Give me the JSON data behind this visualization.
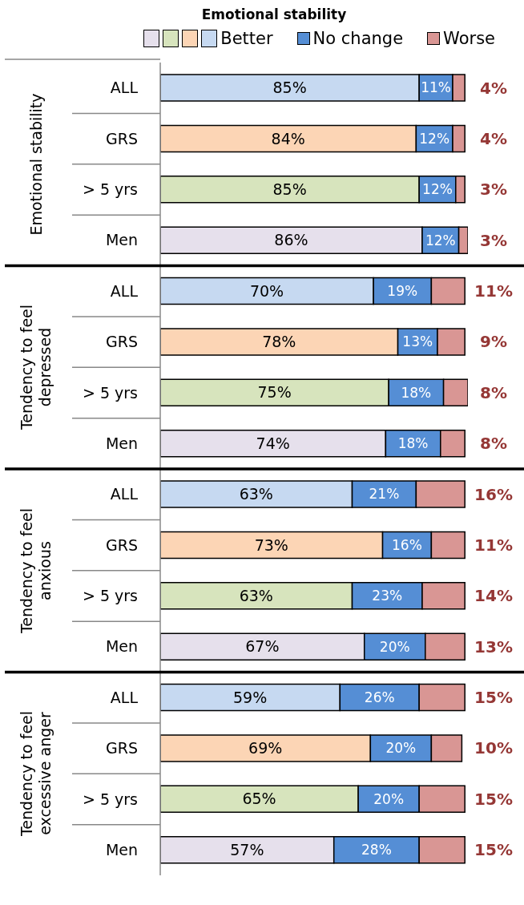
{
  "chart_data": {
    "type": "bar",
    "orientation": "horizontal",
    "stacked": true,
    "title": "Emotional stability",
    "categories": [
      "ALL",
      "GRS",
      "> 5 yrs",
      "Men",
      "ALL",
      "GRS",
      "> 5 yrs",
      "Men",
      "ALL",
      "GRS",
      "> 5 yrs",
      "Men",
      "ALL",
      "GRS",
      "> 5 yrs",
      "Men"
    ],
    "xlim": [
      0,
      101
    ],
    "tick_labels": "y",
    "legend": "top",
    "annotations": [
      "Emotional stability",
      "Tendency to feel depressed",
      "Tendency to feel anxious",
      "Tendency to feel excessive anger"
    ],
    "series": [
      {
        "name": "Better",
        "colors": [
          "#c6d9f1",
          "#fcd5b5",
          "#d7e4bd",
          "#e6e0ec",
          "#c6d9f1",
          "#fcd5b5",
          "#d7e4bd",
          "#e6e0ec",
          "#c6d9f1",
          "#fcd5b5",
          "#d7e4bd",
          "#e6e0ec",
          "#c6d9f1",
          "#fcd5b5",
          "#d7e4bd",
          "#e6e0ec"
        ],
        "values": [
          85,
          84,
          85,
          86,
          70,
          78,
          75,
          74,
          63,
          73,
          63,
          67,
          59,
          69,
          65,
          57
        ],
        "value_labels": [
          "85%",
          "84%",
          "85%",
          "86%",
          "70%",
          "78%",
          "75%",
          "74%",
          "63%",
          "73%",
          "63%",
          "67%",
          "59%",
          "69%",
          "65%",
          "57%"
        ]
      },
      {
        "name": "No change",
        "color": "#558ed5",
        "values": [
          11,
          12,
          12,
          12,
          19,
          13,
          18,
          18,
          21,
          16,
          23,
          20,
          26,
          20,
          20,
          28
        ],
        "value_labels": [
          "11%",
          "12%",
          "12%",
          "12%",
          "19%",
          "13%",
          "18%",
          "18%",
          "21%",
          "16%",
          "23%",
          "20%",
          "26%",
          "20%",
          "20%",
          "28%"
        ]
      },
      {
        "name": "Worse",
        "color": "#d99694",
        "values": [
          4,
          4,
          3,
          3,
          11,
          9,
          8,
          8,
          16,
          11,
          14,
          13,
          15,
          10,
          15,
          15
        ],
        "value_labels": [
          "4%",
          "4%",
          "3%",
          "3%",
          "11%",
          "9%",
          "8%",
          "8%",
          "16%",
          "11%",
          "14%",
          "13%",
          "15%",
          "10%",
          "15%",
          "15%"
        ]
      }
    ]
  }
}
